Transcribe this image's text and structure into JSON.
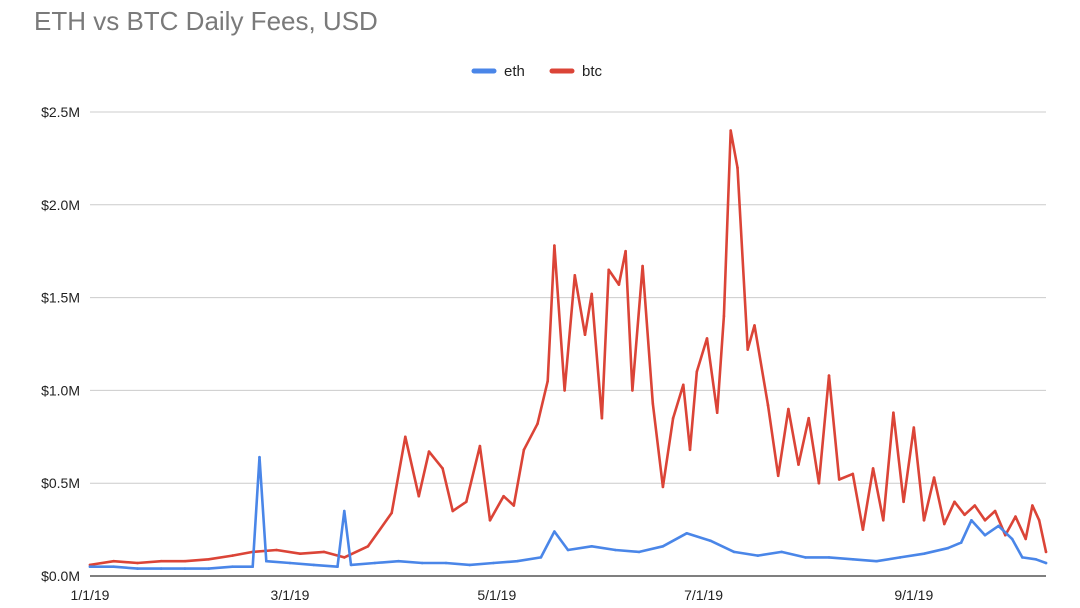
{
  "chart_data": {
    "type": "line",
    "title": "ETH vs BTC Daily Fees, USD",
    "xlabel": "",
    "ylabel": "",
    "x_start": "2019-01-01",
    "x_end": "2019-10-10",
    "x_ticks": [
      {
        "label": "1/1/19",
        "date": "2019-01-01"
      },
      {
        "label": "3/1/19",
        "date": "2019-03-01"
      },
      {
        "label": "5/1/19",
        "date": "2019-05-01"
      },
      {
        "label": "7/1/19",
        "date": "2019-07-01"
      },
      {
        "label": "9/1/19",
        "date": "2019-09-01"
      }
    ],
    "y_ticks": [
      {
        "label": "$0.0M",
        "value": 0
      },
      {
        "label": "$0.5M",
        "value": 0.5
      },
      {
        "label": "$1.0M",
        "value": 1.0
      },
      {
        "label": "$1.5M",
        "value": 1.5
      },
      {
        "label": "$2.0M",
        "value": 2.0
      },
      {
        "label": "$2.5M",
        "value": 2.5
      }
    ],
    "ylim": [
      0,
      2.5
    ],
    "grid": true,
    "legend_position": "top-center",
    "series": [
      {
        "name": "eth",
        "color": "#4a86e8",
        "points": [
          [
            "2019-01-01",
            0.05
          ],
          [
            "2019-01-08",
            0.05
          ],
          [
            "2019-01-15",
            0.04
          ],
          [
            "2019-01-22",
            0.04
          ],
          [
            "2019-01-29",
            0.04
          ],
          [
            "2019-02-05",
            0.04
          ],
          [
            "2019-02-12",
            0.05
          ],
          [
            "2019-02-18",
            0.05
          ],
          [
            "2019-02-20",
            0.64
          ],
          [
            "2019-02-22",
            0.08
          ],
          [
            "2019-03-01",
            0.07
          ],
          [
            "2019-03-08",
            0.06
          ],
          [
            "2019-03-15",
            0.05
          ],
          [
            "2019-03-17",
            0.35
          ],
          [
            "2019-03-19",
            0.06
          ],
          [
            "2019-03-26",
            0.07
          ],
          [
            "2019-04-02",
            0.08
          ],
          [
            "2019-04-09",
            0.07
          ],
          [
            "2019-04-16",
            0.07
          ],
          [
            "2019-04-23",
            0.06
          ],
          [
            "2019-04-30",
            0.07
          ],
          [
            "2019-05-07",
            0.08
          ],
          [
            "2019-05-14",
            0.1
          ],
          [
            "2019-05-18",
            0.24
          ],
          [
            "2019-05-22",
            0.14
          ],
          [
            "2019-05-29",
            0.16
          ],
          [
            "2019-06-05",
            0.14
          ],
          [
            "2019-06-12",
            0.13
          ],
          [
            "2019-06-19",
            0.16
          ],
          [
            "2019-06-26",
            0.23
          ],
          [
            "2019-07-03",
            0.19
          ],
          [
            "2019-07-10",
            0.13
          ],
          [
            "2019-07-17",
            0.11
          ],
          [
            "2019-07-24",
            0.13
          ],
          [
            "2019-07-31",
            0.1
          ],
          [
            "2019-08-07",
            0.1
          ],
          [
            "2019-08-14",
            0.09
          ],
          [
            "2019-08-21",
            0.08
          ],
          [
            "2019-08-28",
            0.1
          ],
          [
            "2019-09-04",
            0.12
          ],
          [
            "2019-09-11",
            0.15
          ],
          [
            "2019-09-15",
            0.18
          ],
          [
            "2019-09-18",
            0.3
          ],
          [
            "2019-09-22",
            0.22
          ],
          [
            "2019-09-26",
            0.27
          ],
          [
            "2019-09-30",
            0.2
          ],
          [
            "2019-10-03",
            0.1
          ],
          [
            "2019-10-07",
            0.09
          ],
          [
            "2019-10-10",
            0.07
          ]
        ]
      },
      {
        "name": "btc",
        "color": "#db4437",
        "points": [
          [
            "2019-01-01",
            0.06
          ],
          [
            "2019-01-08",
            0.08
          ],
          [
            "2019-01-15",
            0.07
          ],
          [
            "2019-01-22",
            0.08
          ],
          [
            "2019-01-29",
            0.08
          ],
          [
            "2019-02-05",
            0.09
          ],
          [
            "2019-02-12",
            0.11
          ],
          [
            "2019-02-18",
            0.13
          ],
          [
            "2019-02-25",
            0.14
          ],
          [
            "2019-03-04",
            0.12
          ],
          [
            "2019-03-11",
            0.13
          ],
          [
            "2019-03-17",
            0.1
          ],
          [
            "2019-03-24",
            0.16
          ],
          [
            "2019-03-31",
            0.34
          ],
          [
            "2019-04-04",
            0.75
          ],
          [
            "2019-04-08",
            0.43
          ],
          [
            "2019-04-11",
            0.67
          ],
          [
            "2019-04-15",
            0.58
          ],
          [
            "2019-04-18",
            0.35
          ],
          [
            "2019-04-22",
            0.4
          ],
          [
            "2019-04-26",
            0.7
          ],
          [
            "2019-04-29",
            0.3
          ],
          [
            "2019-05-03",
            0.43
          ],
          [
            "2019-05-06",
            0.38
          ],
          [
            "2019-05-09",
            0.68
          ],
          [
            "2019-05-13",
            0.82
          ],
          [
            "2019-05-16",
            1.05
          ],
          [
            "2019-05-18",
            1.78
          ],
          [
            "2019-05-21",
            1.0
          ],
          [
            "2019-05-24",
            1.62
          ],
          [
            "2019-05-27",
            1.3
          ],
          [
            "2019-05-29",
            1.52
          ],
          [
            "2019-06-01",
            0.85
          ],
          [
            "2019-06-03",
            1.65
          ],
          [
            "2019-06-06",
            1.57
          ],
          [
            "2019-06-08",
            1.75
          ],
          [
            "2019-06-10",
            1.0
          ],
          [
            "2019-06-13",
            1.67
          ],
          [
            "2019-06-16",
            0.93
          ],
          [
            "2019-06-19",
            0.48
          ],
          [
            "2019-06-22",
            0.85
          ],
          [
            "2019-06-25",
            1.03
          ],
          [
            "2019-06-27",
            0.68
          ],
          [
            "2019-06-29",
            1.1
          ],
          [
            "2019-07-02",
            1.28
          ],
          [
            "2019-07-05",
            0.88
          ],
          [
            "2019-07-07",
            1.4
          ],
          [
            "2019-07-09",
            2.4
          ],
          [
            "2019-07-11",
            2.2
          ],
          [
            "2019-07-14",
            1.22
          ],
          [
            "2019-07-16",
            1.35
          ],
          [
            "2019-07-20",
            0.92
          ],
          [
            "2019-07-23",
            0.54
          ],
          [
            "2019-07-26",
            0.9
          ],
          [
            "2019-07-29",
            0.6
          ],
          [
            "2019-08-01",
            0.85
          ],
          [
            "2019-08-04",
            0.5
          ],
          [
            "2019-08-07",
            1.08
          ],
          [
            "2019-08-10",
            0.52
          ],
          [
            "2019-08-14",
            0.55
          ],
          [
            "2019-08-17",
            0.25
          ],
          [
            "2019-08-20",
            0.58
          ],
          [
            "2019-08-23",
            0.3
          ],
          [
            "2019-08-26",
            0.88
          ],
          [
            "2019-08-29",
            0.4
          ],
          [
            "2019-09-01",
            0.8
          ],
          [
            "2019-09-04",
            0.3
          ],
          [
            "2019-09-07",
            0.53
          ],
          [
            "2019-09-10",
            0.28
          ],
          [
            "2019-09-13",
            0.4
          ],
          [
            "2019-09-16",
            0.33
          ],
          [
            "2019-09-19",
            0.38
          ],
          [
            "2019-09-22",
            0.3
          ],
          [
            "2019-09-25",
            0.35
          ],
          [
            "2019-09-28",
            0.22
          ],
          [
            "2019-10-01",
            0.32
          ],
          [
            "2019-10-04",
            0.2
          ],
          [
            "2019-10-06",
            0.38
          ],
          [
            "2019-10-08",
            0.3
          ],
          [
            "2019-10-10",
            0.13
          ]
        ]
      }
    ]
  }
}
